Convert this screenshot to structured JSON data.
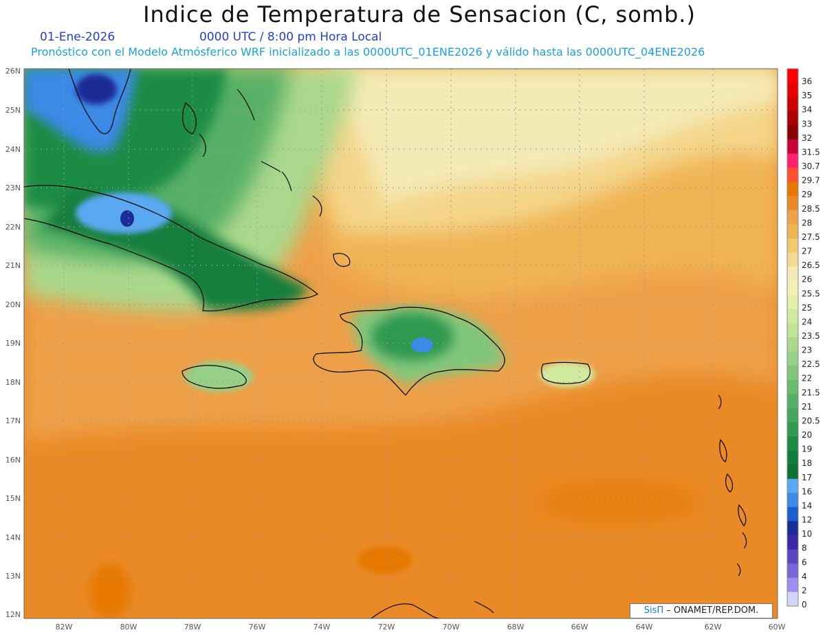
{
  "header": {
    "title": "Indice de Temperatura de Sensacion (C, somb.)",
    "date": "01-Ene-2026",
    "time": "0000 UTC / 8:00 pm Hora Local",
    "subtitle": "Pronóstico con el Modelo Atmósferico WRF inicializado a las 0000UTC_01ENE2026 y válido hasta las  0000UTC_04ENE2026"
  },
  "axes": {
    "lat_labels": [
      "26N",
      "25N",
      "24N",
      "23N",
      "22N",
      "21N",
      "20N",
      "19N",
      "18N",
      "17N",
      "16N",
      "15N",
      "14N",
      "13N",
      "12N"
    ],
    "lon_labels": [
      "82W",
      "80W",
      "78W",
      "76W",
      "74W",
      "72W",
      "70W",
      "68W",
      "66W",
      "64W",
      "62W",
      "60W"
    ]
  },
  "colorbar": {
    "labels": [
      "36",
      "35",
      "34",
      "33",
      "32",
      "31.5",
      "30.7",
      "29.7",
      "29",
      "28.5",
      "28",
      "27.5",
      "27",
      "26.5",
      "26",
      "25.5",
      "25",
      "24",
      "23.5",
      "23",
      "22.5",
      "22",
      "21.5",
      "21",
      "20.5",
      "20",
      "19",
      "18",
      "17",
      "16",
      "14",
      "12",
      "10",
      "8",
      "6",
      "4",
      "2",
      "0"
    ],
    "colors": [
      "#ff0000",
      "#e60000",
      "#cc0000",
      "#aa0000",
      "#880000",
      "#c8003c",
      "#ff2070",
      "#ff5030",
      "#e67800",
      "#ea8a26",
      "#eea04a",
      "#f0b455",
      "#f4c870",
      "#f2da92",
      "#f4eab5",
      "#f0f0b8",
      "#e4f0a8",
      "#d2eaa0",
      "#c0e495",
      "#aad88c",
      "#96d086",
      "#82c67c",
      "#6aba70",
      "#58b066",
      "#46a75c",
      "#2f9a50",
      "#1c8c45",
      "#127e3c",
      "#0f7034",
      "#5aa8f2",
      "#3b8ae6",
      "#1c5ed2",
      "#1a2c96",
      "#3a28a8",
      "#5a46c0",
      "#7a66d6",
      "#9e8ef0",
      "#d4d4f8"
    ]
  },
  "credit": {
    "sis": "SisΠ",
    "text": "– ONAMET/REP.DOM."
  },
  "map_colors": {
    "ocean_warm": "#ea8a26",
    "ocean_mid": "#eea04a",
    "land_green": "#127e3c",
    "cold_blue": "#3b8ae6",
    "coast": "#000000"
  }
}
